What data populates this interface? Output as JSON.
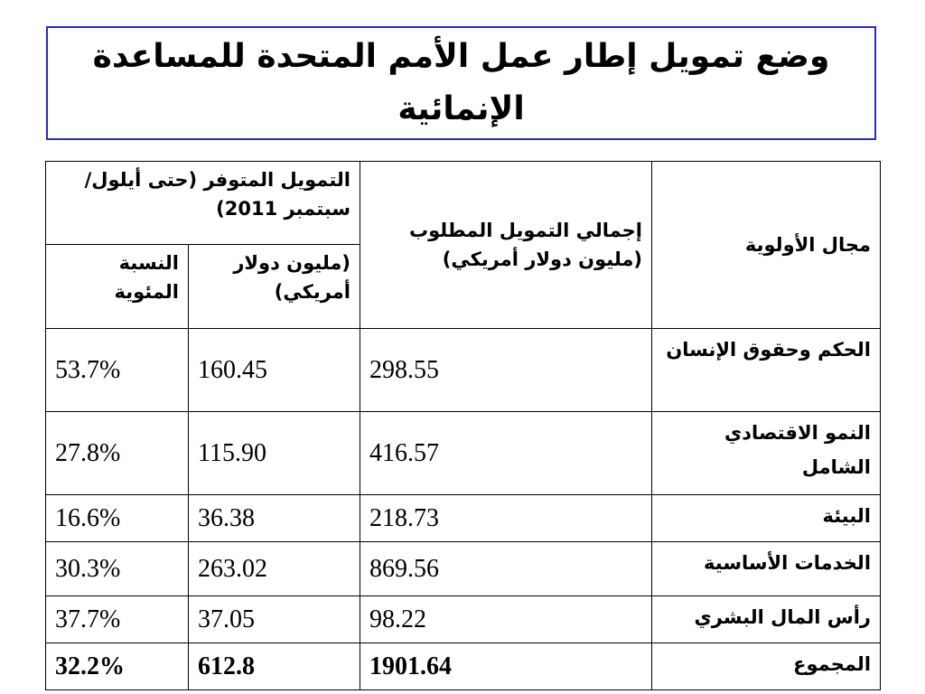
{
  "title": "وضع تمويل إطار عمل الأمم المتحدة للمساعدة الإنمائية",
  "headers": {
    "priority_area": "مجال الأولوية",
    "total_required": "إجمالي التمويل المطلوب (مليون دولار أمريكي)",
    "available_funding": "التمويل المتوفر (حتى أيلول/سبتمبر 2011)",
    "available_usd": "(مليون دولار أمريكي)",
    "percentage": "النسبة المئوية"
  },
  "rows": [
    {
      "area": "الحكم وحقوق الإنسان",
      "required": "298.55",
      "available": "160.45",
      "percent": "53.7%"
    },
    {
      "area": "النمو الاقتصادي الشامل",
      "required": "416.57",
      "available": "115.90",
      "percent": "27.8%"
    },
    {
      "area": "البيئة",
      "required": "218.73",
      "available": "36.38",
      "percent": "16.6%"
    },
    {
      "area": "الخدمات الأساسية",
      "required": "869.56",
      "available": "263.02",
      "percent": "30.3%"
    },
    {
      "area": "رأس المال البشري",
      "required": "98.22",
      "available": "37.05",
      "percent": "37.7%"
    }
  ],
  "total": {
    "area": "المجموع",
    "required": "1901.64",
    "available": "612.8",
    "percent": "32.2%"
  },
  "colors": {
    "title_border": "#2a2ac0",
    "text": "#000000",
    "background": "#ffffff"
  }
}
